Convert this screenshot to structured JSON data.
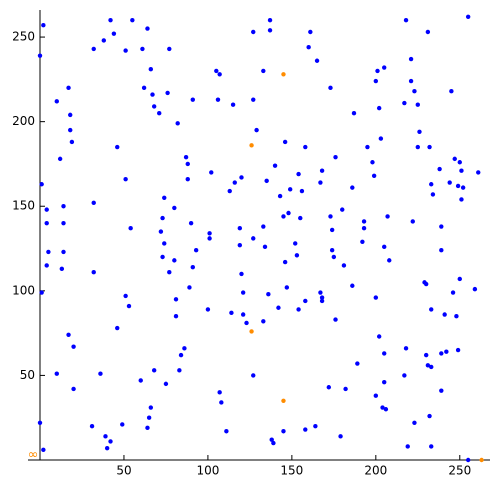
{
  "chart_data": {
    "type": "scatter",
    "annotation": "∞",
    "xlim": [
      0,
      268
    ],
    "ylim": [
      0,
      266
    ],
    "xticks": [
      50,
      100,
      150,
      200,
      250
    ],
    "yticks": [
      50,
      100,
      150,
      200,
      250
    ],
    "series": [
      {
        "color": "#0000ff",
        "x": [
          2,
          0,
          1,
          1,
          0,
          2,
          4,
          4,
          5,
          4,
          10,
          12,
          14,
          14,
          14,
          13,
          17,
          18,
          18,
          19,
          20,
          20,
          10,
          17,
          32,
          32,
          32,
          31,
          36,
          38,
          39,
          40,
          42,
          42,
          44,
          46,
          46,
          49,
          51,
          51,
          51,
          53,
          54,
          55,
          60,
          61,
          62,
          64,
          64,
          65,
          66,
          66,
          67,
          68,
          68,
          71,
          72,
          73,
          73,
          74,
          74,
          75,
          76,
          77,
          77,
          80,
          80,
          81,
          81,
          82,
          83,
          84,
          86,
          87,
          88,
          88,
          89,
          90,
          91,
          91,
          93,
          102,
          101,
          101,
          100,
          105,
          107,
          108,
          111,
          107,
          106,
          113,
          114,
          115,
          116,
          119,
          119,
          120,
          121,
          120,
          121,
          123,
          127,
          127,
          127,
          127,
          129,
          133,
          133,
          133,
          134,
          135,
          136,
          137,
          137,
          138,
          140,
          139,
          142,
          143,
          145,
          145,
          146,
          146,
          147,
          148,
          149,
          152,
          154,
          154,
          153,
          155,
          156,
          158,
          158,
          158,
          160,
          161,
          165,
          164,
          167,
          167,
          168,
          168,
          168,
          172,
          173,
          173,
          174,
          174,
          175,
          176,
          176,
          179,
          180,
          181,
          182,
          186,
          186,
          189,
          187,
          192,
          193,
          193,
          195,
          198,
          199,
          200,
          200,
          200,
          201,
          202,
          202,
          203,
          205,
          204,
          205,
          205,
          206,
          205,
          207,
          208,
          217,
          217,
          218,
          218,
          219,
          221,
          222,
          223,
          221,
          223,
          225,
          226,
          225,
          229,
          230,
          230,
          231,
          231,
          232,
          233,
          232,
          234,
          233,
          233,
          233,
          238,
          239,
          239,
          241,
          239,
          242,
          244,
          245,
          246,
          248,
          249,
          249,
          247,
          250,
          250,
          251,
          251,
          252,
          255,
          255,
          261,
          259,
          239
        ],
        "values": [
          257,
          239,
          163,
          99,
          22,
          6,
          148,
          140,
          123,
          115,
          212,
          178,
          150,
          140,
          123,
          113,
          220,
          204,
          195,
          188,
          67,
          42,
          51,
          74,
          243,
          152,
          111,
          20,
          51,
          248,
          14,
          7,
          260,
          11,
          252,
          185,
          78,
          21,
          242,
          166,
          97,
          91,
          137,
          260,
          47,
          243,
          220,
          255,
          19,
          25,
          231,
          31,
          216,
          209,
          53,
          205,
          135,
          143,
          120,
          155,
          128,
          45,
          217,
          243,
          111,
          149,
          118,
          95,
          85,
          199,
          53,
          62,
          66,
          179,
          175,
          166,
          102,
          140,
          213,
          114,
          124,
          170,
          131,
          134,
          89,
          230,
          228,
          34,
          17,
          40,
          213,
          159,
          87,
          210,
          164,
          137,
          127,
          110,
          99,
          167,
          86,
          81,
          253,
          213,
          131,
          50,
          195,
          230,
          82,
          138,
          126,
          165,
          98,
          260,
          254,
          12,
          174,
          10,
          90,
          156,
          17,
          144,
          188,
          117,
          102,
          146,
          160,
          128,
          89,
          169,
          121,
          143,
          159,
          94,
          185,
          18,
          244,
          253,
          236,
          20,
          99,
          164,
          96,
          171,
          94,
          43,
          220,
          144,
          136,
          124,
          120,
          179,
          83,
          14,
          148,
          115,
          42,
          161,
          103,
          57,
          205,
          129,
          137,
          141,
          185,
          176,
          168,
          224,
          96,
          38,
          230,
          73,
          208,
          190,
          232,
          31,
          46,
          126,
          30,
          63,
          144,
          118,
          211,
          50,
          66,
          260,
          8,
          224,
          141,
          218,
          237,
          22,
          210,
          194,
          185,
          105,
          104,
          62,
          56,
          253,
          26,
          163,
          185,
          157,
          89,
          55,
          8,
          172,
          138,
          124,
          86,
          63,
          64,
          164,
          218,
          99,
          85,
          65,
          162,
          178,
          176,
          107,
          171,
          154,
          161,
          0,
          262,
          170,
          101,
          41
        ]
      },
      {
        "color": "#ff8c00",
        "x": [
          145,
          126,
          126,
          145,
          263
        ],
        "values": [
          228,
          186,
          76,
          35,
          0
        ]
      }
    ]
  }
}
